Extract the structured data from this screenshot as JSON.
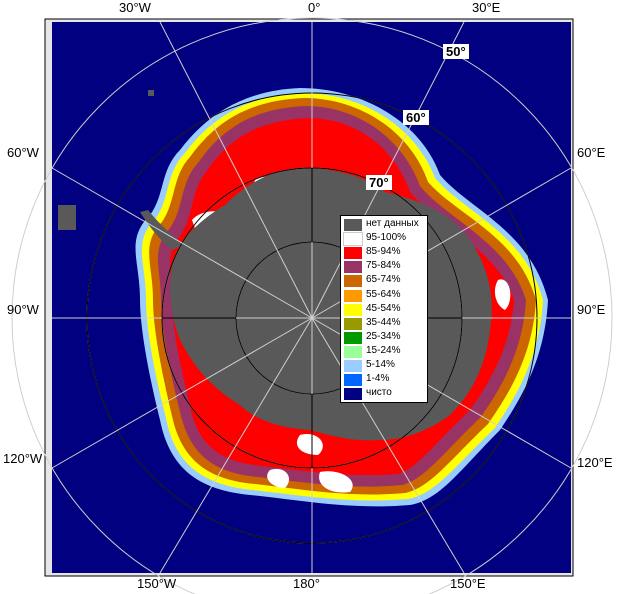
{
  "map": {
    "longitude_labels": {
      "top_left": "30°W",
      "top_center": "0°",
      "top_right": "30°E",
      "left_upper": "60°W",
      "left_middle": "90°W",
      "left_lower": "120°W",
      "right_upper": "60°E",
      "right_middle": "90°E",
      "right_lower": "120°E",
      "bottom_left": "150°W",
      "bottom_center": "180°",
      "bottom_right": "150°E"
    },
    "latitude_labels": {
      "lat50": "50°",
      "lat60": "60°",
      "lat70": "70°"
    },
    "colors": {
      "ocean": "#000080",
      "land": "#595959",
      "frame": "#e6e6e6"
    }
  },
  "legend": {
    "items": [
      {
        "label": "нет данных",
        "color": "#595959"
      },
      {
        "label": "95-100%",
        "color": "#ffffff"
      },
      {
        "label": "85-94%",
        "color": "#ff0000"
      },
      {
        "label": "75-84%",
        "color": "#993366"
      },
      {
        "label": "65-74%",
        "color": "#cc6600"
      },
      {
        "label": "55-64%",
        "color": "#ff9900"
      },
      {
        "label": "45-54%",
        "color": "#ffff00"
      },
      {
        "label": "35-44%",
        "color": "#999900"
      },
      {
        "label": "25-34%",
        "color": "#009900"
      },
      {
        "label": "15-24%",
        "color": "#99ff99"
      },
      {
        "label": "5-14%",
        "color": "#99ccff"
      },
      {
        "label": "1-4%",
        "color": "#0066ff"
      },
      {
        "label": "чисто",
        "color": "#000080"
      }
    ]
  }
}
